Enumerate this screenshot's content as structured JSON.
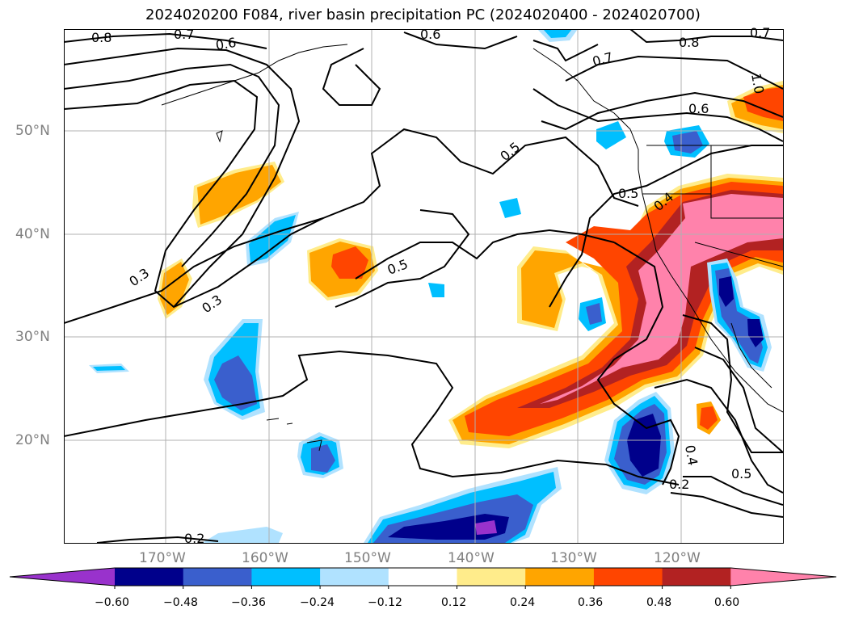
{
  "title": "2024020200 F084, river basin precipitation PC (2024020400 - 2024020700)",
  "map": {
    "projection": "plate-carree",
    "lon_range": [
      -180,
      -110
    ],
    "lat_range": [
      10,
      60
    ],
    "grid": true,
    "lat_labels": [
      "50°N",
      "40°N",
      "30°N",
      "20°N"
    ],
    "lon_labels": [
      "170°W",
      "160°W",
      "150°W",
      "140°W",
      "130°W",
      "120°W"
    ],
    "contour_labels": [
      "0.8",
      "0.7",
      "0.6",
      "0.6",
      "0.8",
      "0.7",
      "0.7",
      "1.0",
      "0.6",
      "0.5",
      "0.5",
      "0.4",
      "0.5",
      "0.3",
      "0.3",
      "0.4",
      "0.2",
      "0.5",
      "0.2"
    ]
  },
  "colorbar": {
    "ticks": [
      "−0.60",
      "−0.48",
      "−0.36",
      "−0.24",
      "−0.12",
      "0.12",
      "0.24",
      "0.36",
      "0.48",
      "0.60"
    ],
    "colors": [
      "#9932cc",
      "#00008b",
      "#3a5fcd",
      "#00bfff",
      "#b0e2ff",
      "#ffffff",
      "#ffec8b",
      "#ffa500",
      "#ff4500",
      "#b22222",
      "#ff82ab"
    ],
    "extend": "both"
  }
}
